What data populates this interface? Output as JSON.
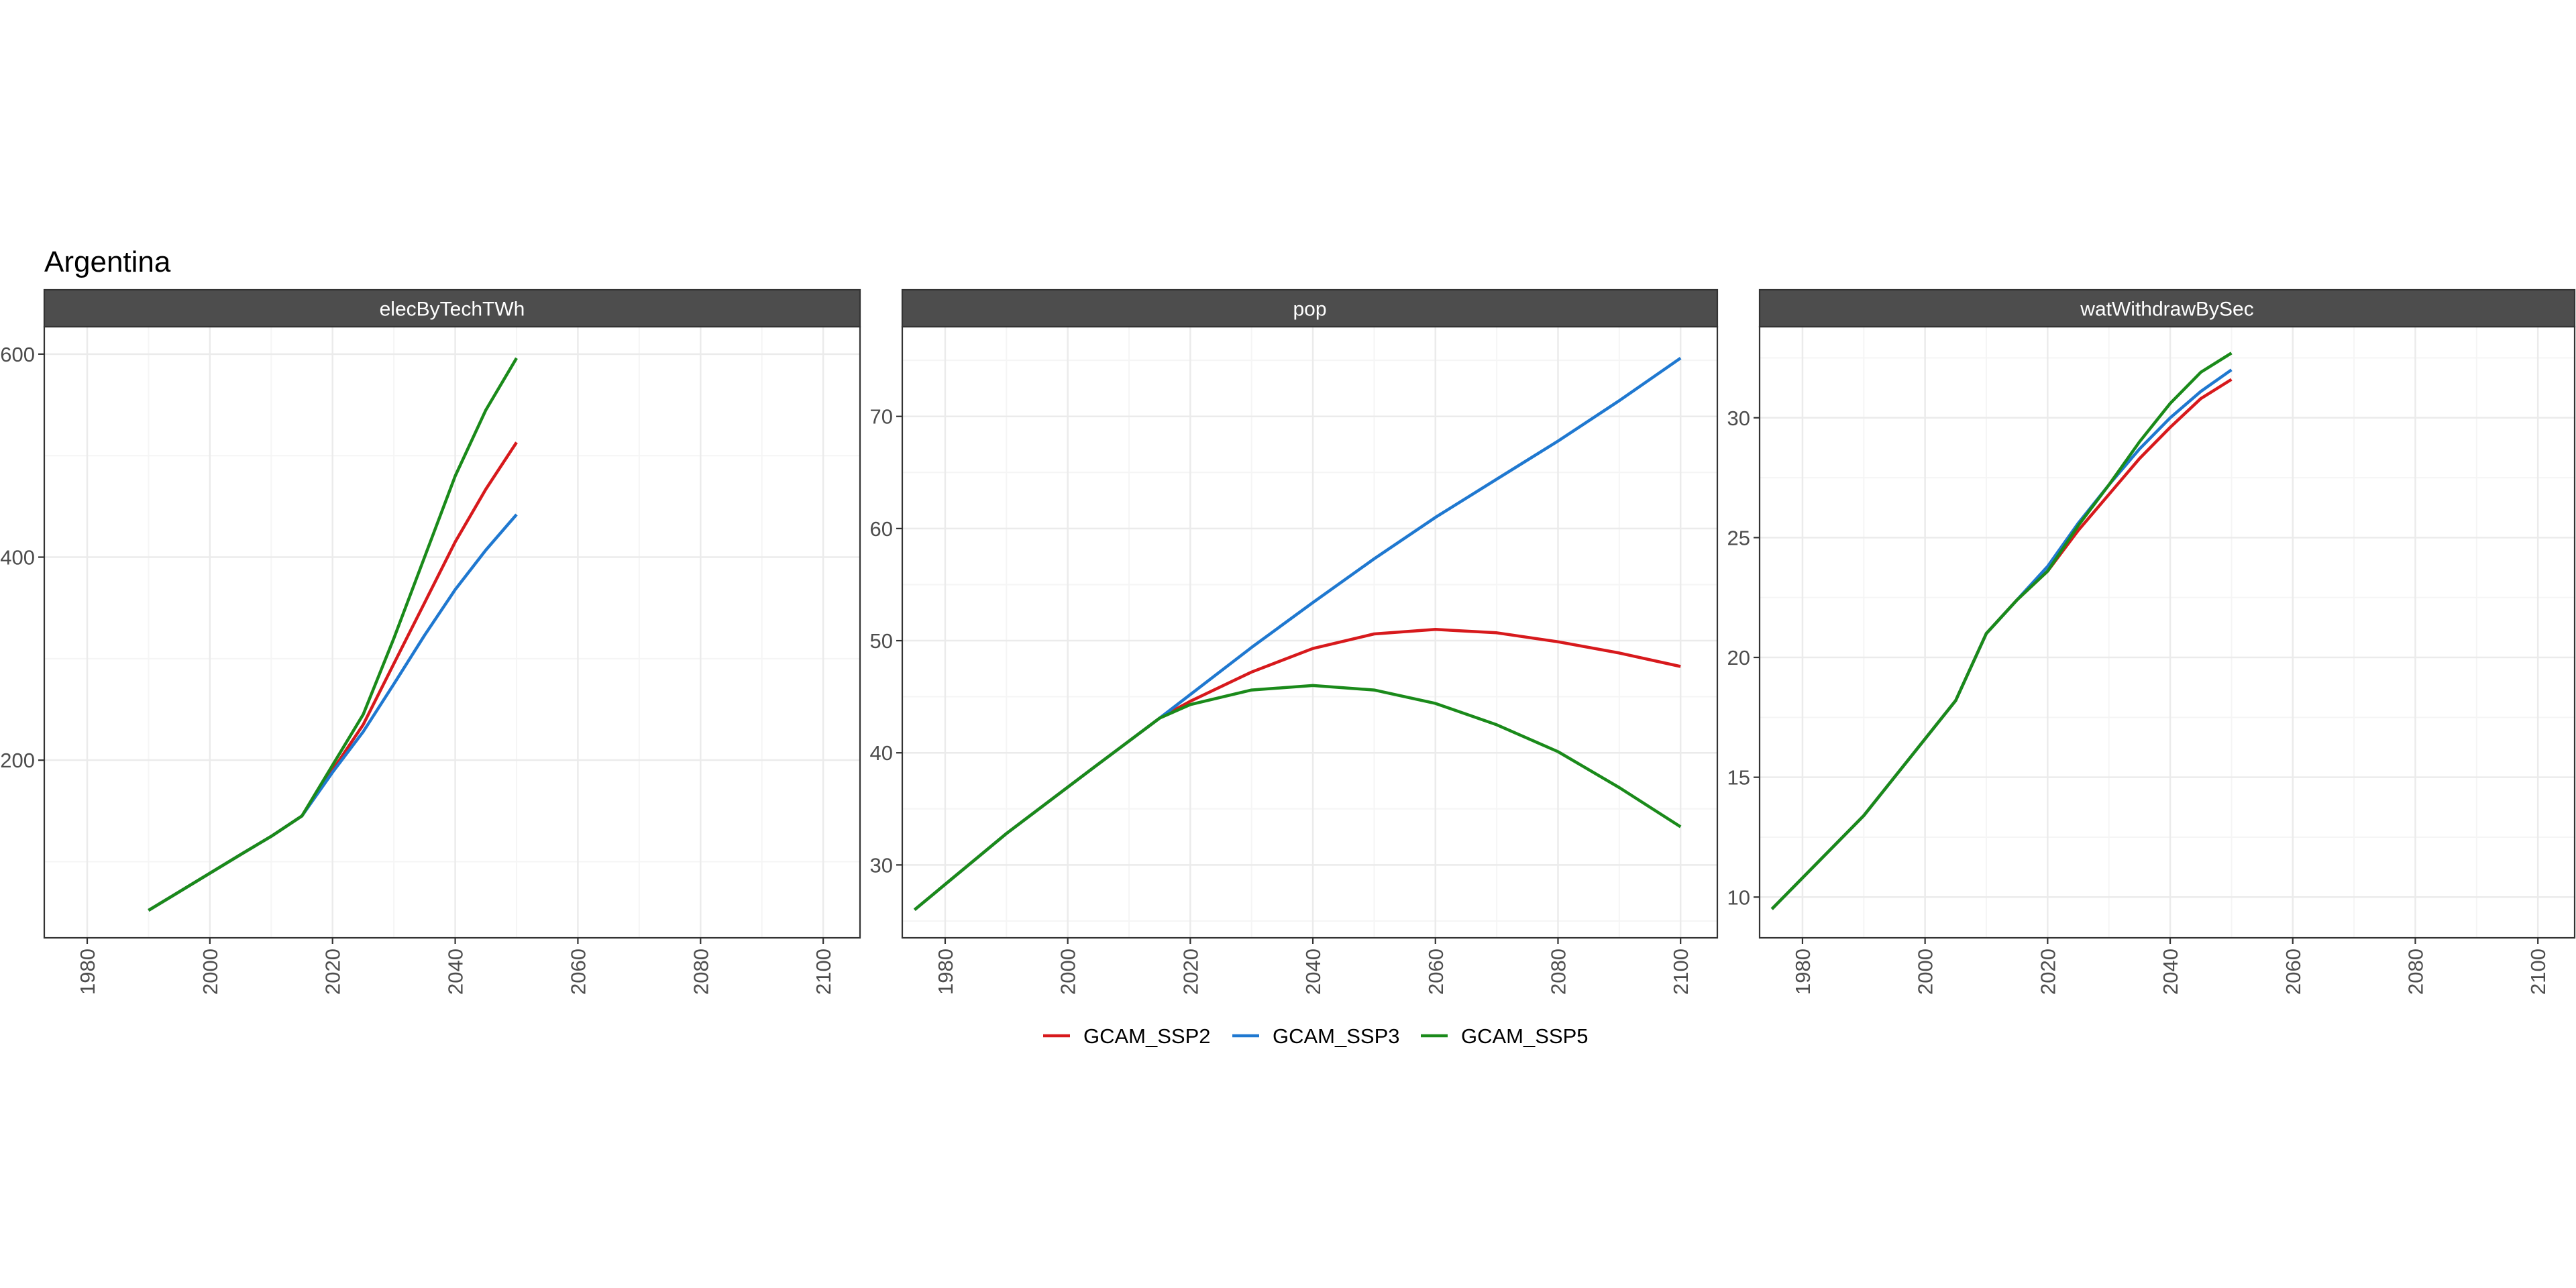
{
  "figure_title": "Argentina",
  "colors": {
    "strip_bg": "#4d4d4d",
    "strip_text": "#ffffff",
    "grid_major": "#ebebeb",
    "grid_minor": "#f5f5f5",
    "panel_border": "#333333",
    "tick_text": "#4d4d4d"
  },
  "legend": {
    "position": "bottom",
    "items": [
      {
        "label": "GCAM_SSP2",
        "color": "#d7191c"
      },
      {
        "label": "GCAM_SSP3",
        "color": "#1f78d0"
      },
      {
        "label": "GCAM_SSP5",
        "color": "#1a8a1a"
      }
    ]
  },
  "chart_data": [
    {
      "type": "line",
      "facet": "elecByTechTWh",
      "xlim": [
        1973,
        2106
      ],
      "ylim": [
        25,
        627
      ],
      "x_ticks": [
        1980,
        2000,
        2020,
        2040,
        2060,
        2080,
        2100
      ],
      "y_ticks": [
        200,
        400,
        600
      ],
      "series": [
        {
          "name": "GCAM_SSP2",
          "color": "#d7191c",
          "x": [
            1990,
            2005,
            2010,
            2015,
            2020,
            2025,
            2030,
            2035,
            2040,
            2045,
            2050
          ],
          "y": [
            52,
            107,
            125,
            145,
            190,
            235,
            295,
            355,
            415,
            467,
            513
          ]
        },
        {
          "name": "GCAM_SSP3",
          "color": "#1f78d0",
          "x": [
            1990,
            2005,
            2010,
            2015,
            2020,
            2025,
            2030,
            2035,
            2040,
            2045,
            2050
          ],
          "y": [
            52,
            107,
            125,
            145,
            188,
            228,
            275,
            323,
            368,
            407,
            442
          ]
        },
        {
          "name": "GCAM_SSP5",
          "color": "#1a8a1a",
          "x": [
            1990,
            2005,
            2010,
            2015,
            2020,
            2025,
            2030,
            2035,
            2040,
            2045,
            2050
          ],
          "y": [
            52,
            107,
            125,
            145,
            195,
            245,
            320,
            400,
            480,
            545,
            596
          ]
        }
      ]
    },
    {
      "type": "line",
      "facet": "pop",
      "xlim": [
        1973,
        2106
      ],
      "ylim": [
        23.5,
        78
      ],
      "x_ticks": [
        1980,
        2000,
        2020,
        2040,
        2060,
        2080,
        2100
      ],
      "y_ticks": [
        30,
        40,
        50,
        60,
        70
      ],
      "series": [
        {
          "name": "GCAM_SSP2",
          "color": "#d7191c",
          "x": [
            1975,
            1990,
            2005,
            2015,
            2020,
            2030,
            2040,
            2050,
            2060,
            2070,
            2080,
            2090,
            2100
          ],
          "y": [
            26,
            32.8,
            39,
            43.1,
            44.6,
            47.2,
            49.3,
            50.6,
            51,
            50.7,
            49.9,
            48.9,
            47.7
          ]
        },
        {
          "name": "GCAM_SSP3",
          "color": "#1f78d0",
          "x": [
            1975,
            1990,
            2005,
            2015,
            2020,
            2030,
            2040,
            2050,
            2060,
            2070,
            2080,
            2090,
            2100
          ],
          "y": [
            26,
            32.8,
            39,
            43.1,
            45.2,
            49.4,
            53.4,
            57.3,
            61,
            64.4,
            67.8,
            71.4,
            75.2
          ]
        },
        {
          "name": "GCAM_SSP5",
          "color": "#1a8a1a",
          "x": [
            1975,
            1990,
            2005,
            2015,
            2020,
            2030,
            2040,
            2050,
            2060,
            2070,
            2080,
            2090,
            2100
          ],
          "y": [
            26,
            32.8,
            39,
            43.1,
            44.3,
            45.6,
            46,
            45.6,
            44.4,
            42.5,
            40.1,
            36.9,
            33.4
          ]
        }
      ]
    },
    {
      "type": "line",
      "facet": "watWithdrawBySec",
      "xlim": [
        1973,
        2106
      ],
      "ylim": [
        8.3,
        33.8
      ],
      "x_ticks": [
        1980,
        2000,
        2020,
        2040,
        2060,
        2080,
        2100
      ],
      "y_ticks": [
        10,
        15,
        20,
        25,
        30
      ],
      "series": [
        {
          "name": "GCAM_SSP2",
          "color": "#d7191c",
          "x": [
            1975,
            1990,
            2005,
            2010,
            2015,
            2020,
            2025,
            2030,
            2035,
            2040,
            2045,
            2050
          ],
          "y": [
            9.5,
            13.4,
            18.2,
            21,
            22.4,
            23.6,
            25.3,
            26.8,
            28.3,
            29.6,
            30.8,
            31.6
          ]
        },
        {
          "name": "GCAM_SSP3",
          "color": "#1f78d0",
          "x": [
            1975,
            1990,
            2005,
            2010,
            2015,
            2020,
            2025,
            2030,
            2035,
            2040,
            2045,
            2050
          ],
          "y": [
            9.5,
            13.4,
            18.2,
            21,
            22.4,
            23.8,
            25.6,
            27.2,
            28.7,
            30,
            31.1,
            32
          ]
        },
        {
          "name": "GCAM_SSP5",
          "color": "#1a8a1a",
          "x": [
            1975,
            1990,
            2005,
            2010,
            2015,
            2020,
            2025,
            2030,
            2035,
            2040,
            2045,
            2050
          ],
          "y": [
            9.5,
            13.4,
            18.2,
            21,
            22.4,
            23.6,
            25.5,
            27.2,
            29,
            30.6,
            31.9,
            32.7
          ]
        }
      ]
    }
  ]
}
